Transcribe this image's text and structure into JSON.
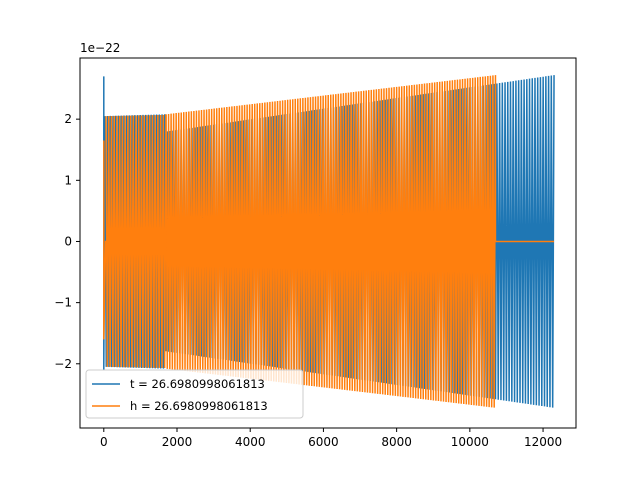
{
  "chart_data": {
    "type": "line",
    "title": "",
    "xlabel": "",
    "ylabel": "",
    "y_scale_label": "1e−22",
    "xlim": [
      -650,
      12900
    ],
    "ylim": [
      -3.05,
      3.0
    ],
    "x_ticks": [
      0,
      2000,
      4000,
      6000,
      8000,
      10000,
      12000
    ],
    "y_ticks": [
      -2,
      -1,
      0,
      1,
      2
    ],
    "y_tick_labels": [
      "−2",
      "−1",
      "0",
      "1",
      "2"
    ],
    "grid": false,
    "legend_position": "lower-left",
    "series": [
      {
        "name": "t = 26.6980998061813",
        "color": "#1f77b4",
        "x_start": 0,
        "x_end": 12300,
        "amplitude_start": 1.65,
        "amplitude_end": 2.72,
        "cycles": 165,
        "zero_plateau": [
          10700,
          12300
        ],
        "initial_spike": 2.7
      },
      {
        "name": "h = 26.6980998061813",
        "color": "#ff7f0e",
        "x_start": 0,
        "x_end": 12300,
        "amplitude_start": 2.05,
        "amplitude_end": 2.72,
        "cycles": 150,
        "zero_plateau_start": [
          50,
          1700
        ],
        "zero_plateau_end": [
          10700,
          12300
        ],
        "initial_spike": 1.65
      }
    ]
  }
}
